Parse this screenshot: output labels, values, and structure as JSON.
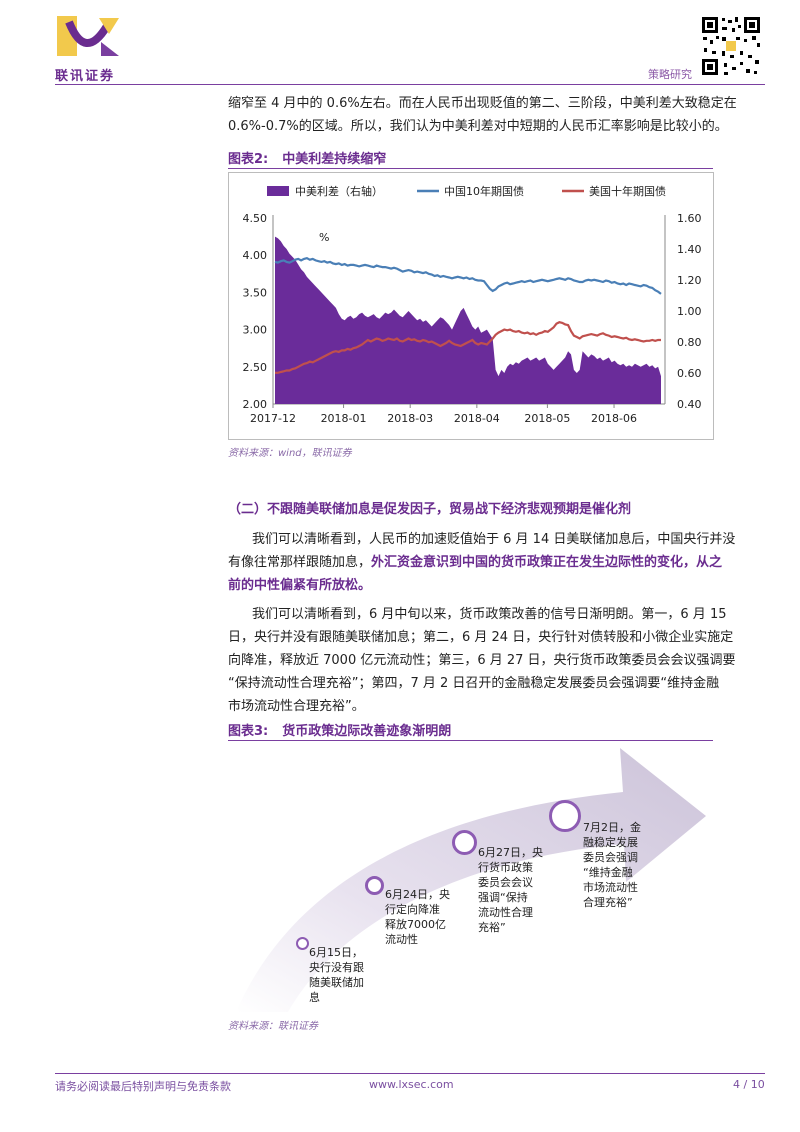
{
  "header": {
    "logo_text": "联讯证券",
    "section": "策略研究"
  },
  "intro": {
    "line1": "缩窄至 4 月中的 0.6%左右。而在人民币出现贬值的第二、三阶段，中美利差大致稳定在",
    "line2": "0.6%-0.7%的区域。所以，我们认为中美利差对中短期的人民币汇率影响是比较小的。"
  },
  "figure2": {
    "num": "图表2:",
    "title": "中美利差持续缩窄",
    "source": "资料来源：wind，联讯证券"
  },
  "chart_data": {
    "type": "line",
    "y_unit_label": "%",
    "legend": [
      "中美利差（右轴）",
      "中国10年期国债",
      "美国十年期国债"
    ],
    "x_ticks": [
      "2017-12",
      "2018-01",
      "2018-03",
      "2018-04",
      "2018-05",
      "2018-06"
    ],
    "ylim_left": [
      2.0,
      4.5
    ],
    "yticks_left": [
      "2.00",
      "2.50",
      "3.00",
      "3.50",
      "4.00",
      "4.50"
    ],
    "ylim_right": [
      0.4,
      1.6
    ],
    "yticks_right": [
      "0.40",
      "0.60",
      "0.80",
      "1.00",
      "1.20",
      "1.40",
      "1.60"
    ],
    "colors": {
      "spread": "#6a2c9a",
      "china": "#4a7fb6",
      "us": "#c0504d"
    },
    "series": [
      {
        "name": "中美利差（右轴）",
        "axis": "right",
        "values": [
          1.48,
          1.47,
          1.45,
          1.42,
          1.4,
          1.37,
          1.35,
          1.33,
          1.3,
          1.27,
          1.25,
          1.22,
          1.2,
          1.18,
          1.16,
          1.14,
          1.12,
          1.1,
          1.08,
          1.06,
          1.04,
          1.02,
          0.98,
          0.95,
          0.94,
          0.96,
          0.97,
          0.95,
          0.96,
          0.98,
          0.99,
          0.97,
          0.96,
          0.97,
          0.98,
          0.96,
          0.95,
          0.97,
          0.99,
          0.98,
          0.99,
          1.01,
          0.99,
          0.97,
          0.96,
          0.98,
          1.0,
          0.98,
          0.96,
          0.94,
          0.95,
          0.93,
          0.94,
          0.92,
          0.9,
          0.92,
          0.94,
          0.96,
          0.95,
          0.93,
          0.91,
          0.88,
          0.92,
          0.96,
          1.0,
          1.02,
          0.98,
          0.94,
          0.9,
          0.88,
          0.9,
          0.86,
          0.87,
          0.88,
          0.85,
          0.82,
          0.62,
          0.58,
          0.62,
          0.6,
          0.64,
          0.66,
          0.65,
          0.67,
          0.66,
          0.68,
          0.69,
          0.7,
          0.68,
          0.69,
          0.7,
          0.68,
          0.69,
          0.7,
          0.66,
          0.64,
          0.62,
          0.64,
          0.66,
          0.68,
          0.7,
          0.74,
          0.72,
          0.62,
          0.6,
          0.62,
          0.74,
          0.72,
          0.7,
          0.72,
          0.71,
          0.69,
          0.7,
          0.68,
          0.69,
          0.7,
          0.67,
          0.68,
          0.66,
          0.65,
          0.66,
          0.64,
          0.65,
          0.64,
          0.66,
          0.65,
          0.64,
          0.65,
          0.66,
          0.64,
          0.65,
          0.63,
          0.64,
          0.58
        ]
      },
      {
        "name": "中国10年期国债",
        "axis": "left",
        "values": [
          3.91,
          3.9,
          3.92,
          3.93,
          3.91,
          3.9,
          3.92,
          3.94,
          3.95,
          3.93,
          3.95,
          3.96,
          3.94,
          3.95,
          3.93,
          3.92,
          3.91,
          3.92,
          3.9,
          3.91,
          3.89,
          3.88,
          3.89,
          3.87,
          3.88,
          3.86,
          3.87,
          3.87,
          3.86,
          3.85,
          3.86,
          3.87,
          3.86,
          3.85,
          3.84,
          3.86,
          3.85,
          3.84,
          3.84,
          3.83,
          3.82,
          3.83,
          3.82,
          3.8,
          3.78,
          3.79,
          3.8,
          3.79,
          3.77,
          3.78,
          3.77,
          3.76,
          3.77,
          3.75,
          3.74,
          3.72,
          3.73,
          3.71,
          3.72,
          3.71,
          3.7,
          3.69,
          3.7,
          3.71,
          3.7,
          3.69,
          3.7,
          3.68,
          3.69,
          3.67,
          3.66,
          3.66,
          3.65,
          3.6,
          3.55,
          3.52,
          3.54,
          3.58,
          3.6,
          3.62,
          3.63,
          3.61,
          3.62,
          3.63,
          3.64,
          3.65,
          3.64,
          3.65,
          3.66,
          3.64,
          3.65,
          3.66,
          3.67,
          3.66,
          3.65,
          3.66,
          3.67,
          3.68,
          3.69,
          3.68,
          3.67,
          3.69,
          3.68,
          3.66,
          3.65,
          3.64,
          3.64,
          3.66,
          3.67,
          3.66,
          3.67,
          3.66,
          3.65,
          3.64,
          3.66,
          3.65,
          3.63,
          3.64,
          3.62,
          3.61,
          3.62,
          3.6,
          3.62,
          3.61,
          3.6,
          3.59,
          3.58,
          3.6,
          3.59,
          3.57,
          3.56,
          3.53,
          3.51,
          3.48
        ]
      },
      {
        "name": "美国十年期国债",
        "axis": "left",
        "values": [
          2.42,
          2.42,
          2.43,
          2.44,
          2.45,
          2.45,
          2.47,
          2.48,
          2.5,
          2.52,
          2.54,
          2.55,
          2.57,
          2.56,
          2.58,
          2.6,
          2.62,
          2.64,
          2.66,
          2.68,
          2.7,
          2.71,
          2.7,
          2.72,
          2.72,
          2.74,
          2.73,
          2.75,
          2.76,
          2.78,
          2.8,
          2.83,
          2.86,
          2.84,
          2.86,
          2.88,
          2.87,
          2.85,
          2.86,
          2.88,
          2.87,
          2.86,
          2.88,
          2.85,
          2.84,
          2.86,
          2.88,
          2.86,
          2.87,
          2.85,
          2.84,
          2.86,
          2.85,
          2.83,
          2.84,
          2.82,
          2.8,
          2.78,
          2.8,
          2.82,
          2.85,
          2.82,
          2.8,
          2.79,
          2.78,
          2.8,
          2.82,
          2.84,
          2.86,
          2.82,
          2.8,
          2.82,
          2.81,
          2.8,
          2.84,
          2.88,
          2.93,
          2.96,
          2.98,
          3.0,
          2.99,
          3.0,
          2.98,
          2.97,
          2.98,
          2.96,
          2.95,
          2.96,
          2.94,
          2.95,
          2.93,
          2.95,
          2.96,
          2.98,
          2.97,
          3.0,
          3.03,
          3.08,
          3.1,
          3.09,
          3.07,
          3.06,
          2.98,
          2.92,
          2.9,
          2.88,
          2.91,
          2.92,
          2.93,
          2.94,
          2.93,
          2.92,
          2.94,
          2.95,
          2.93,
          2.92,
          2.9,
          2.91,
          2.9,
          2.89,
          2.88,
          2.89,
          2.87,
          2.86,
          2.87,
          2.86,
          2.85,
          2.84,
          2.85,
          2.85,
          2.86,
          2.85,
          2.86,
          2.86
        ]
      }
    ]
  },
  "section2": {
    "heading": "（二）不跟随美联储加息是促发因子，贸易战下经济悲观预期是催化剂",
    "p1_line1": "我们可以清晰看到，人民币的加速贬值始于 6 月 14 日美联储加息后，中国央行并没",
    "p1_line2_a": "有像往常那样跟随加息，",
    "p1_line2_b": "外汇资金意识到中国的货币政策正在发生边际性的变化，从之",
    "p1_line3": "前的中性偏紧有所放松。",
    "p2_line1": "我们可以清晰看到，6 月中旬以来，货币政策改善的信号日渐明朗。第一，6 月 15",
    "p2_line2": "日，央行并没有跟随美联储加息；第二，6 月 24 日，央行针对债转股和小微企业实施定",
    "p2_line3": "向降准，释放近 7000 亿元流动性；第三，6 月 27 日，央行货币政策委员会会议强调要",
    "p2_line4": "“保持流动性合理充裕”；第四，7 月 2 日召开的金融稳定发展委员会强调要“维持金融",
    "p2_line5": "市场流动性合理充裕”。"
  },
  "figure3": {
    "num": "图表3:",
    "title": "货币政策边际改善迹象渐明朗",
    "source": "资料来源：联讯证券",
    "events": [
      {
        "text": "6月15日，\n央行没有跟\n随美联储加\n息"
      },
      {
        "text": "6月24日，央\n行定向降准\n释放7000亿\n流动性"
      },
      {
        "text": "6月27日，央\n行货币政策\n委员会会议\n强调“保持\n流动性合理\n充裕”"
      },
      {
        "text": "7月2日，金\n融稳定发展\n委员会强调\n“维持金融\n市场流动性\n合理充裕”"
      }
    ]
  },
  "footer": {
    "disclaimer": "请务必阅读最后特别声明与免责条款",
    "url": "www.lxsec.com",
    "page": "4 / 10"
  }
}
